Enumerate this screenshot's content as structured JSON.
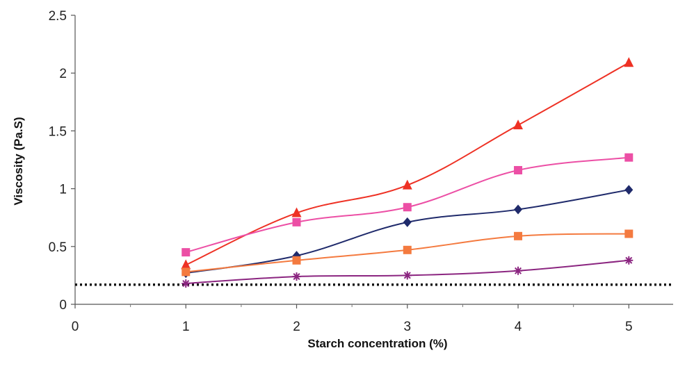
{
  "chart_data": {
    "type": "line",
    "xlabel": "Starch concentration (%)",
    "ylabel": "Viscosity (Pa.S)",
    "xlim": [
      0,
      5.4
    ],
    "ylim": [
      0,
      2.5
    ],
    "x_ticks": [
      "0",
      "1",
      "2",
      "3",
      "4",
      "5"
    ],
    "y_ticks": [
      "0",
      "0.5",
      "1",
      "1.5",
      "2",
      "2.5"
    ],
    "grid": false,
    "legend": "none",
    "x": [
      1,
      2,
      3,
      4,
      5
    ],
    "series": [
      {
        "marker": "triangle",
        "color": "#ee3124",
        "values": [
          0.34,
          0.79,
          1.03,
          1.55,
          2.09
        ]
      },
      {
        "marker": "square",
        "color": "#ec4fa5",
        "values": [
          0.45,
          0.71,
          0.84,
          1.16,
          1.27
        ]
      },
      {
        "marker": "diamond",
        "color": "#1f2a6b",
        "values": [
          0.27,
          0.42,
          0.71,
          0.82,
          0.99
        ]
      },
      {
        "marker": "square",
        "color": "#f47a3f",
        "values": [
          0.28,
          0.38,
          0.47,
          0.59,
          0.61
        ]
      },
      {
        "marker": "star",
        "color": "#8b2580",
        "values": [
          0.18,
          0.24,
          0.25,
          0.29,
          0.38
        ]
      }
    ],
    "reference_line": {
      "style": "dotted",
      "color": "#111111",
      "value": 0.17
    }
  }
}
